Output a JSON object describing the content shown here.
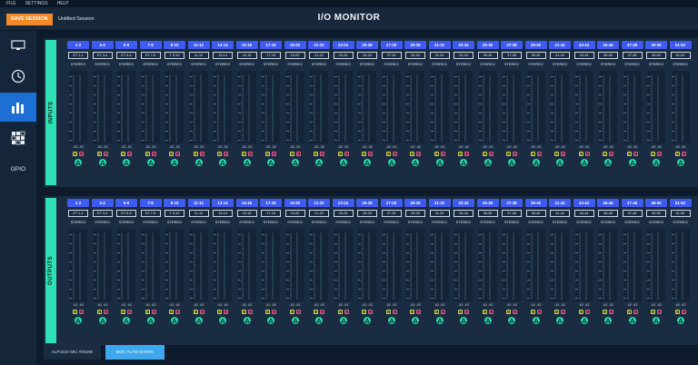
{
  "menu": [
    "FILE",
    "SETTINGS",
    "HELP"
  ],
  "header": {
    "save_label": "SAVE SESSION",
    "session_name": "Untitled Session",
    "title": "I/O MONITOR"
  },
  "sidebar": {
    "items": [
      {
        "icon": "display-icon"
      },
      {
        "icon": "clock-icon"
      },
      {
        "icon": "bar-chart-icon",
        "active": true
      },
      {
        "icon": "grid-icon"
      },
      {
        "label": "GPIO"
      }
    ]
  },
  "sections": [
    {
      "label": "INPUTS"
    },
    {
      "label": "OUTPUTS"
    }
  ],
  "channels": [
    "1-2",
    "3-4",
    "5-6",
    "7-8",
    "9-10",
    "11-12",
    "13-14",
    "15-16",
    "17-18",
    "19-20",
    "21-22",
    "23-24",
    "25-26",
    "27-28",
    "29-30",
    "31-32",
    "33-34",
    "35-36",
    "37-38",
    "39-40",
    "41-42",
    "43-44",
    "45-46",
    "47-48",
    "49-50",
    "51-52"
  ],
  "names": [
    "ET 1-2",
    "ET 3-4",
    "ET 5-6",
    "ET 7-8",
    "T 9-10",
    "11-12",
    "13-14",
    "15-16",
    "17-18",
    "19-20",
    "21-22",
    "23-24",
    "25-26",
    "27-28",
    "29-30",
    "31-32",
    "33-34",
    "35-36",
    "37-38",
    "39-40",
    "41-42",
    "43-44",
    "45-46",
    "47-48",
    "49-50",
    "51-52"
  ],
  "format": "STEREO",
  "levels": "-92 -92",
  "solo_label": "S",
  "mute_label": "M",
  "footer": {
    "tab1": "ALP442e-MIC #00290",
    "tab2": "MOC AUTO-DANTE"
  },
  "colors": {
    "accent": "#2ee0b3",
    "channel": "#3f5bef",
    "save": "#f08a2c",
    "active_nav": "#1e6fd4"
  }
}
